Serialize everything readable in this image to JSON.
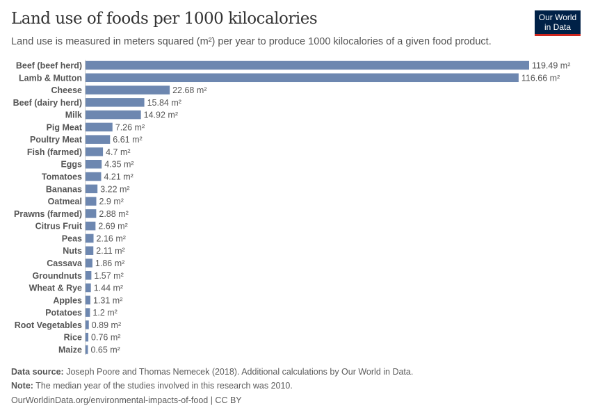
{
  "title": "Land use of foods per 1000 kilocalories",
  "subtitle": "Land use is measured in meters squared (m²) per year to produce 1000 kilocalories of a given food product.",
  "logo": {
    "line1": "Our World",
    "line2": "in Data"
  },
  "colors": {
    "bar": "#6d87b0",
    "logo_bg": "#002147",
    "logo_accent": "#ce261e"
  },
  "chart_data": {
    "type": "bar",
    "orientation": "horizontal",
    "unit": "m²",
    "categories": [
      "Beef (beef herd)",
      "Lamb & Mutton",
      "Cheese",
      "Beef (dairy herd)",
      "Milk",
      "Pig Meat",
      "Poultry Meat",
      "Fish (farmed)",
      "Eggs",
      "Tomatoes",
      "Bananas",
      "Oatmeal",
      "Prawns (farmed)",
      "Citrus Fruit",
      "Peas",
      "Nuts",
      "Cassava",
      "Groundnuts",
      "Wheat & Rye",
      "Apples",
      "Potatoes",
      "Root Vegetables",
      "Rice",
      "Maize"
    ],
    "values": [
      119.49,
      116.66,
      22.68,
      15.84,
      14.92,
      7.26,
      6.61,
      4.7,
      4.35,
      4.21,
      3.22,
      2.9,
      2.88,
      2.69,
      2.16,
      2.11,
      1.86,
      1.57,
      1.44,
      1.31,
      1.2,
      0.89,
      0.76,
      0.65
    ],
    "data_labels": [
      "119.49 m²",
      "116.66 m²",
      "22.68 m²",
      "15.84 m²",
      "14.92 m²",
      "7.26 m²",
      "6.61 m²",
      "4.7 m²",
      "4.35 m²",
      "4.21 m²",
      "3.22 m²",
      "2.9 m²",
      "2.88 m²",
      "2.69 m²",
      "2.16 m²",
      "2.11 m²",
      "1.86 m²",
      "1.57 m²",
      "1.44 m²",
      "1.31 m²",
      "1.2 m²",
      "0.89 m²",
      "0.76 m²",
      "0.65 m²"
    ]
  },
  "footer": {
    "source_label": "Data source:",
    "source_text": " Joseph Poore and Thomas Nemecek (2018). Additional calculations by Our World in Data.",
    "note_label": "Note:",
    "note_text": " The median year of the studies involved in this research was 2010.",
    "url": "OurWorldinData.org/environmental-impacts-of-food | CC BY"
  }
}
